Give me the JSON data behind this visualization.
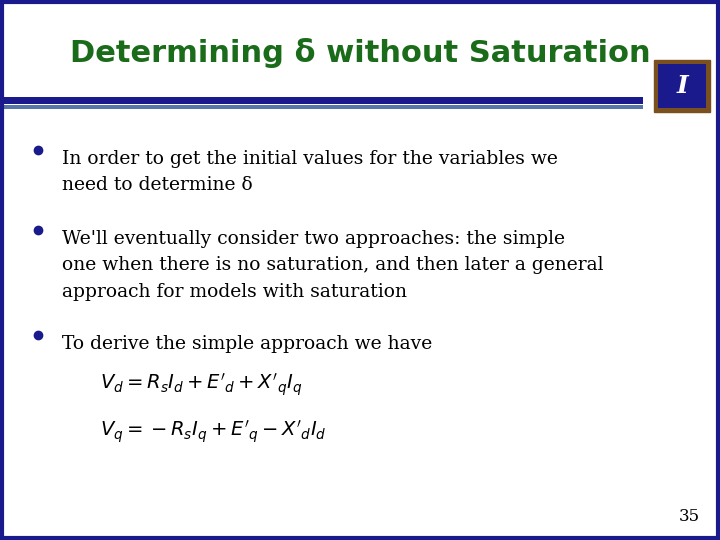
{
  "title": "Determining δ without Saturation",
  "title_color": "#1a6b1a",
  "title_fontsize": 22,
  "slide_background": "#ffffff",
  "title_bg_color": "#ffffff",
  "header_line_color_top": "#1a1a8c",
  "header_line_color_bottom": "#5577aa",
  "bullet_color": "#1a1a8c",
  "text_color": "#000000",
  "bullet_points": [
    "In order to get the initial values for the variables we\nneed to determine δ",
    "We'll eventually consider two approaches: the simple\none when there is no saturation, and then later a general\napproach for models with saturation",
    "To derive the simple approach we have"
  ],
  "formula1": "$V_d = R_s I_d +E'_d + X'_q I_q$",
  "formula2": "$V_q = -R_s I_q +E'_q - X'_d I_d$",
  "page_number": "35",
  "icon_border_color": "#7a5020",
  "icon_bg_color": "#1a1a8c",
  "icon_text_color": "#ffffff",
  "outer_border_color": "#1a1a8c"
}
